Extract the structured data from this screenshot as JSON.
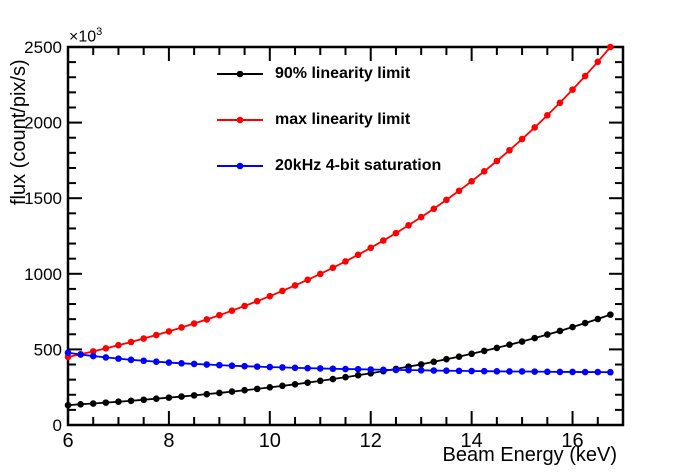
{
  "chart_data": {
    "type": "line",
    "title": "",
    "xlabel": "Beam Energy (keV)",
    "ylabel": "flux (count/pix/s)",
    "y_axis_multiplier": {
      "base": "×10",
      "exponent": "3"
    },
    "xlim": [
      6,
      17
    ],
    "ylim": [
      0,
      2500
    ],
    "x_major_ticks": [
      6,
      8,
      10,
      12,
      14,
      16
    ],
    "x_minor_tick_step": 0.5,
    "y_major_ticks": [
      0,
      500,
      1000,
      1500,
      2000,
      2500
    ],
    "y_minor_tick_step": 100,
    "grid": false,
    "legend_position": "top-left-inside",
    "frame_color": "#000000",
    "background_color": "#ffffff",
    "x": [
      6.0,
      6.25,
      6.5,
      6.75,
      7.0,
      7.25,
      7.5,
      7.75,
      8.0,
      8.25,
      8.5,
      8.75,
      9.0,
      9.25,
      9.5,
      9.75,
      10.0,
      10.25,
      10.5,
      10.75,
      11.0,
      11.25,
      11.5,
      11.75,
      12.0,
      12.25,
      12.5,
      12.75,
      13.0,
      13.25,
      13.5,
      13.75,
      14.0,
      14.25,
      14.5,
      14.75,
      15.0,
      15.25,
      15.5,
      15.75,
      16.0,
      16.25,
      16.5,
      16.75
    ],
    "series": [
      {
        "name": "90% linearity limit",
        "color": "#000000",
        "marker": "filled-circle",
        "values": [
          131,
          137,
          142,
          148,
          154,
          160,
          167,
          174,
          181,
          188,
          196,
          204,
          212,
          221,
          230,
          239,
          249,
          259,
          269,
          280,
          292,
          304,
          316,
          329,
          342,
          356,
          371,
          386,
          401,
          418,
          435,
          452,
          471,
          490,
          510,
          531,
          552,
          575,
          598,
          622,
          648,
          674,
          701,
          730
        ]
      },
      {
        "name": "max linearity limit",
        "color": "#ff0000",
        "marker": "filled-circle",
        "values": [
          450,
          468,
          487,
          507,
          528,
          549,
          572,
          595,
          619,
          645,
          671,
          698,
          726,
          756,
          787,
          819,
          852,
          887,
          923,
          960,
          999,
          1040,
          1082,
          1126,
          1172,
          1220,
          1269,
          1321,
          1375,
          1430,
          1489,
          1549,
          1612,
          1678,
          1746,
          1817,
          1891,
          1968,
          2048,
          2131,
          2218,
          2308,
          2402,
          2500
        ]
      },
      {
        "name": "20kHz 4-bit saturation",
        "color": "#0000ff",
        "marker": "filled-circle",
        "values": [
          478,
          466,
          456,
          447,
          439,
          431,
          425,
          419,
          413,
          408,
          404,
          400,
          396,
          392,
          389,
          386,
          383,
          381,
          378,
          376,
          374,
          372,
          370,
          369,
          367,
          365,
          364,
          363,
          362,
          360,
          359,
          358,
          357,
          356,
          355,
          354,
          354,
          353,
          352,
          351,
          351,
          350,
          350,
          349
        ]
      }
    ]
  }
}
